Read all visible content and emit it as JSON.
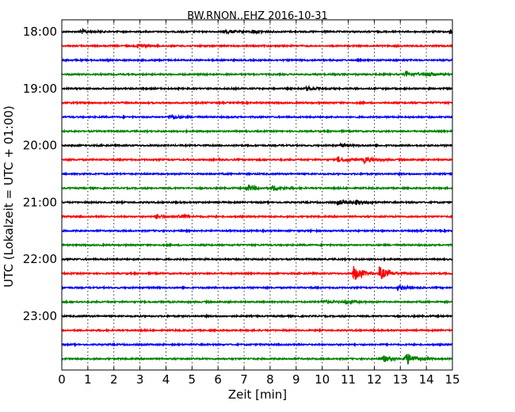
{
  "chart_data": {
    "type": "line",
    "title": "BW.RNON..EHZ 2016-10-31",
    "xlabel": "Zeit  [min]",
    "ylabel": "UTC (Lokalzeit = UTC + 01:00)",
    "xlim": [
      0,
      15
    ],
    "x_ticks": [
      "0",
      "1",
      "2",
      "3",
      "4",
      "5",
      "6",
      "7",
      "8",
      "9",
      "10",
      "11",
      "12",
      "13",
      "14",
      "15"
    ],
    "y_ticks": [
      "18:00",
      "19:00",
      "20:00",
      "21:00",
      "22:00",
      "23:00"
    ],
    "trace_interval_minutes": 15,
    "grid": true,
    "trace_colors": [
      "#000000",
      "#ff0000",
      "#0000ff",
      "#008000"
    ],
    "traces": [
      {
        "start": "18:00",
        "events": [
          {
            "t": 0.7,
            "amp": 1.2
          },
          {
            "t": 6.3,
            "amp": 1.0
          },
          {
            "t": 7.3,
            "amp": 1.0
          },
          {
            "t": 14.9,
            "amp": 1.2
          }
        ]
      },
      {
        "start": "18:15",
        "events": [
          {
            "t": 2.9,
            "amp": 1.2
          }
        ]
      },
      {
        "start": "18:30",
        "events": []
      },
      {
        "start": "18:45",
        "events": [
          {
            "t": 13.2,
            "amp": 1.6
          },
          {
            "t": 14.0,
            "amp": 1.2
          }
        ]
      },
      {
        "start": "19:00",
        "events": [
          {
            "t": 9.4,
            "amp": 1.0
          }
        ]
      },
      {
        "start": "19:15",
        "events": []
      },
      {
        "start": "19:30",
        "events": [
          {
            "t": 4.1,
            "amp": 1.0
          }
        ]
      },
      {
        "start": "19:45",
        "events": []
      },
      {
        "start": "20:00",
        "events": [
          {
            "t": 10.7,
            "amp": 0.8
          }
        ]
      },
      {
        "start": "20:15",
        "events": [
          {
            "t": 10.6,
            "amp": 1.6
          },
          {
            "t": 11.6,
            "amp": 1.6
          }
        ]
      },
      {
        "start": "20:30",
        "events": []
      },
      {
        "start": "20:45",
        "events": [
          {
            "t": 7.1,
            "amp": 1.8
          },
          {
            "t": 8.1,
            "amp": 1.4
          }
        ]
      },
      {
        "start": "21:00",
        "events": [
          {
            "t": 10.6,
            "amp": 1.4
          },
          {
            "t": 11.3,
            "amp": 1.2
          }
        ]
      },
      {
        "start": "21:15",
        "events": [
          {
            "t": 3.6,
            "amp": 1.2
          },
          {
            "t": 4.5,
            "amp": 1.0
          }
        ]
      },
      {
        "start": "21:30",
        "events": []
      },
      {
        "start": "21:45",
        "events": []
      },
      {
        "start": "22:00",
        "events": []
      },
      {
        "start": "22:15",
        "events": [
          {
            "t": 11.2,
            "amp": 4.5
          },
          {
            "t": 12.2,
            "amp": 3.5
          }
        ]
      },
      {
        "start": "22:30",
        "events": [
          {
            "t": 12.9,
            "amp": 1.2
          }
        ]
      },
      {
        "start": "22:45",
        "events": [
          {
            "t": 10.0,
            "amp": 1.0
          },
          {
            "t": 10.9,
            "amp": 1.0
          }
        ]
      },
      {
        "start": "23:00",
        "events": []
      },
      {
        "start": "23:15",
        "events": []
      },
      {
        "start": "23:30",
        "events": []
      },
      {
        "start": "23:45",
        "events": [
          {
            "t": 12.3,
            "amp": 2.0
          },
          {
            "t": 13.2,
            "amp": 3.5
          }
        ]
      }
    ]
  }
}
